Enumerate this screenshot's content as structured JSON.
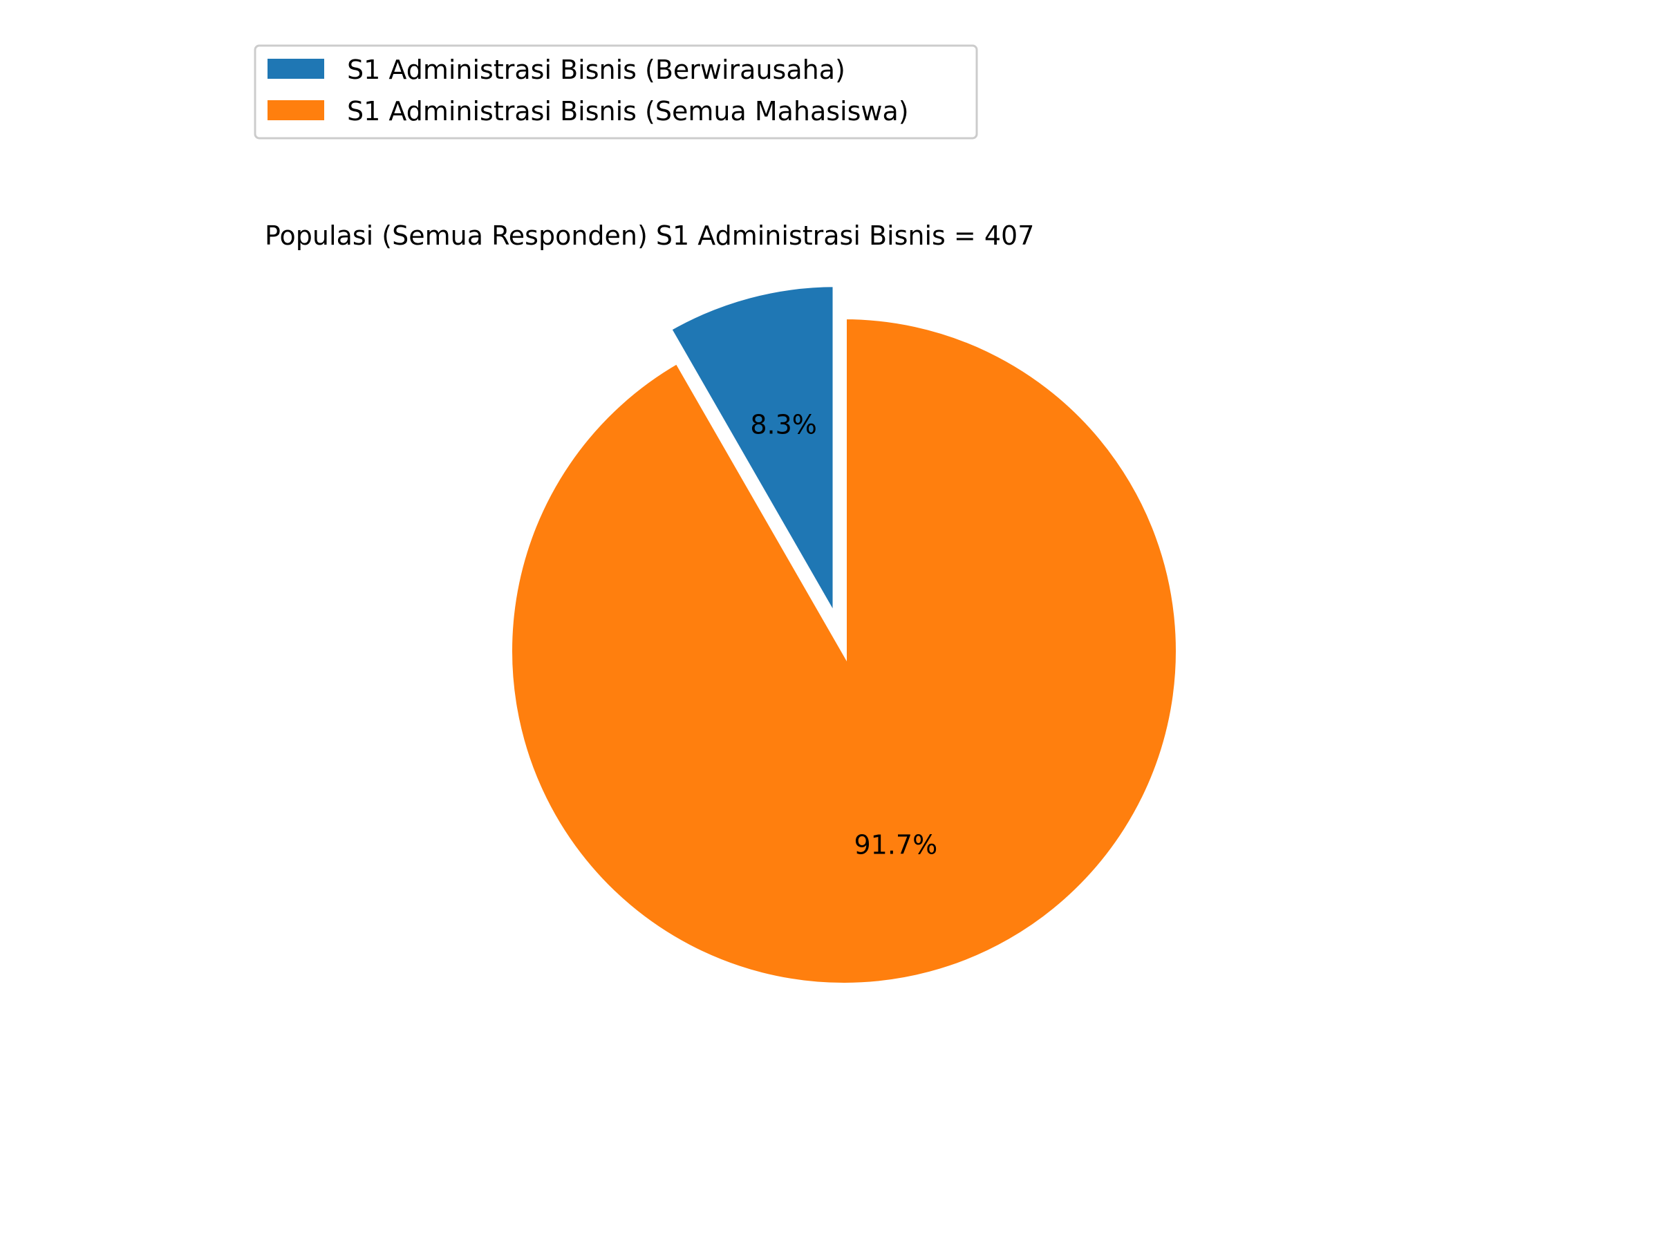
{
  "chart_data": {
    "type": "pie",
    "title": "Populasi (Semua Responden) S1 Administrasi Bisnis = 407",
    "total": 407,
    "start_angle_deg": 90,
    "direction": "counterclockwise",
    "slices": [
      {
        "label": "S1 Administrasi Bisnis (Berwirausaha)",
        "value": 8.3,
        "pct_label": "8.3%",
        "color": "#1f77b4",
        "exploded": true
      },
      {
        "label": "S1 Administrasi Bisnis (Semua Mahasiswa)",
        "value": 91.7,
        "pct_label": "91.7%",
        "color": "#ff7f0e",
        "exploded": false
      }
    ],
    "legend": {
      "placement": "top-left",
      "entries": [
        "S1 Administrasi Bisnis (Berwirausaha)",
        "S1 Administrasi Bisnis (Semua Mahasiswa)"
      ]
    }
  }
}
